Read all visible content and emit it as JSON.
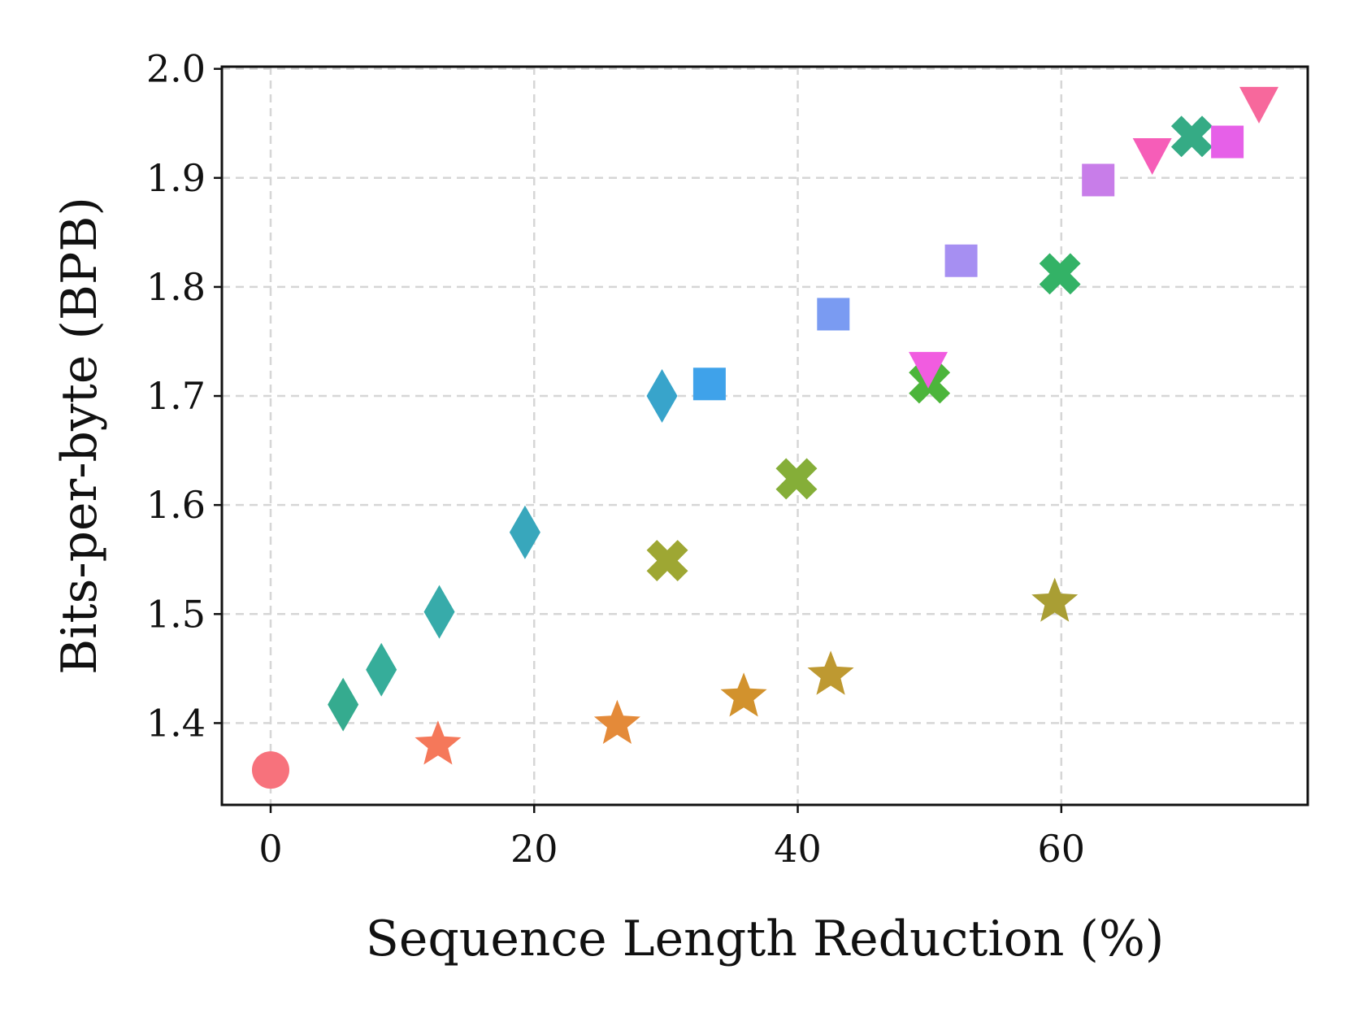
{
  "chart_data": {
    "type": "scatter",
    "title": "",
    "xlabel": "Sequence Length Reduction (%)",
    "ylabel": "Bits-per-byte (BPB)",
    "xlim": [
      -3.7,
      78.7
    ],
    "ylim": [
      1.325,
      2.002
    ],
    "xticks": [
      "0",
      "20",
      "40",
      "60"
    ],
    "yticks": [
      "1.4",
      "1.5",
      "1.6",
      "1.7",
      "1.8",
      "1.9",
      "2.0"
    ],
    "grid": true,
    "legend": "none",
    "points": [
      {
        "x": 0.0,
        "y": 1.357,
        "marker": "circle",
        "color": "#f7727c"
      },
      {
        "x": 5.5,
        "y": 1.417,
        "marker": "diamond",
        "color": "#35ab8f"
      },
      {
        "x": 8.4,
        "y": 1.449,
        "marker": "diamond",
        "color": "#36ad9a"
      },
      {
        "x": 12.8,
        "y": 1.502,
        "marker": "diamond",
        "color": "#37abaa"
      },
      {
        "x": 19.3,
        "y": 1.575,
        "marker": "diamond",
        "color": "#38a7bc"
      },
      {
        "x": 29.7,
        "y": 1.7,
        "marker": "diamond",
        "color": "#38a4cb"
      },
      {
        "x": 12.7,
        "y": 1.38,
        "marker": "star",
        "color": "#f5785a"
      },
      {
        "x": 26.3,
        "y": 1.399,
        "marker": "star",
        "color": "#e48a39"
      },
      {
        "x": 35.9,
        "y": 1.424,
        "marker": "star",
        "color": "#d2922d"
      },
      {
        "x": 42.5,
        "y": 1.444,
        "marker": "star",
        "color": "#be9931"
      },
      {
        "x": 59.5,
        "y": 1.511,
        "marker": "star",
        "color": "#a99e34"
      },
      {
        "x": 30.1,
        "y": 1.549,
        "marker": "x",
        "color": "#9ea733"
      },
      {
        "x": 39.9,
        "y": 1.624,
        "marker": "x",
        "color": "#85ae38"
      },
      {
        "x": 50.0,
        "y": 1.712,
        "marker": "x",
        "color": "#4cb53b"
      },
      {
        "x": 59.9,
        "y": 1.812,
        "marker": "x",
        "color": "#33b266"
      },
      {
        "x": 69.9,
        "y": 1.938,
        "marker": "x",
        "color": "#35ab85"
      },
      {
        "x": 33.3,
        "y": 1.711,
        "marker": "square",
        "color": "#3fa2ea"
      },
      {
        "x": 42.7,
        "y": 1.775,
        "marker": "square",
        "color": "#7a9bf2"
      },
      {
        "x": 52.4,
        "y": 1.824,
        "marker": "square",
        "color": "#a68ff2"
      },
      {
        "x": 62.8,
        "y": 1.898,
        "marker": "square",
        "color": "#c87de9"
      },
      {
        "x": 72.6,
        "y": 1.933,
        "marker": "square",
        "color": "#e660e8"
      },
      {
        "x": 49.9,
        "y": 1.727,
        "marker": "triangle_down",
        "color": "#f15ce0"
      },
      {
        "x": 66.9,
        "y": 1.923,
        "marker": "triangle_down",
        "color": "#f65db8"
      },
      {
        "x": 75.0,
        "y": 1.97,
        "marker": "triangle_down",
        "color": "#f7689c"
      }
    ]
  }
}
